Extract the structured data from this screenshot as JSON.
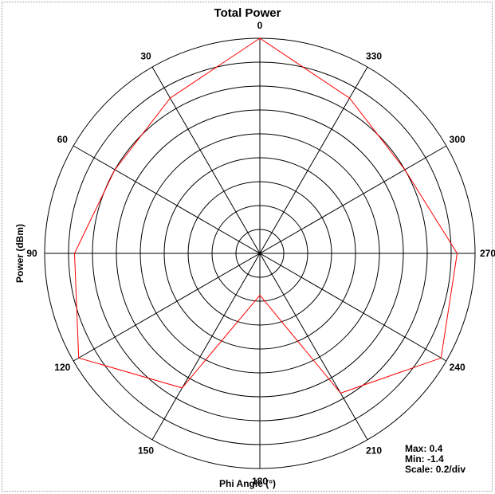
{
  "chart_data": {
    "type": "polar-line",
    "title": "Total Power",
    "xlabel": "Phi Angle  (°)",
    "ylabel": "Power  (dBm)",
    "angle_ticks": [
      "0",
      "30",
      "60",
      "90",
      "120",
      "150",
      "180",
      "210",
      "240",
      "270",
      "300",
      "330"
    ],
    "radial_range": [
      -1.4,
      0.4
    ],
    "radial_step": 0.2,
    "stats": {
      "max": "Max: 0.4",
      "min": "Min: -1.4",
      "scale": "Scale: 0.2/div"
    },
    "series": [
      {
        "color": "#ff0000",
        "angles": [
          0,
          30,
          60,
          90,
          120,
          150,
          180,
          210,
          240,
          270,
          300,
          330
        ],
        "values": [
          0.4,
          0.1,
          0.0,
          0.15,
          0.35,
          -0.1,
          -1.05,
          -0.05,
          0.35,
          0.25,
          0.0,
          0.1
        ]
      }
    ]
  }
}
